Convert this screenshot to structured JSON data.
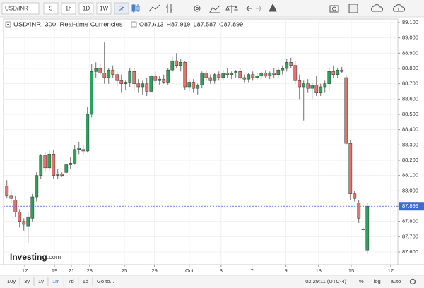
{
  "toolbar": {
    "symbol": "USD/INR",
    "intervals": [
      "5",
      "1h",
      "1D",
      "1W",
      "5h"
    ],
    "active_interval": 4
  },
  "chart_data": {
    "type": "candlestick",
    "title": "USD/INR, 300, Real-time Currencies",
    "ohlc_readout": [
      "O87.613",
      "H87.919",
      "L87.587",
      "C87.899"
    ],
    "logo": {
      "name": "Investing",
      "suffix": ".com"
    },
    "up_color": "#2ea05a",
    "down_color": "#e4736b",
    "last_price": {
      "value": 87.899,
      "label": "87.899"
    },
    "last_price_color": "#3d6bd8",
    "grid": true,
    "xlim": [
      -0.8,
      92.2
    ],
    "xticks": [
      {
        "value": 4.2,
        "label": "17"
      },
      {
        "value": 11.2,
        "label": "19"
      },
      {
        "value": 15.2,
        "label": "21"
      },
      {
        "value": 19.5,
        "label": "23"
      },
      {
        "value": 27.7,
        "label": "25"
      },
      {
        "value": 34.8,
        "label": "29"
      },
      {
        "value": 43,
        "label": "Oct"
      },
      {
        "value": 50.5,
        "label": "3"
      },
      {
        "value": 57.8,
        "label": "7"
      },
      {
        "value": 65.8,
        "label": "9"
      },
      {
        "value": 73.5,
        "label": "13"
      },
      {
        "value": 81.2,
        "label": "15"
      },
      {
        "value": 90.5,
        "label": "17"
      }
    ],
    "ylim": [
      87.517,
      89.123
    ],
    "yticks": [
      {
        "value": 87.6,
        "label": "87.600"
      },
      {
        "value": 87.7,
        "label": "87.700"
      },
      {
        "value": 87.8,
        "label": "87.800"
      },
      {
        "value": 87.9,
        "label": "87.900"
      },
      {
        "value": 88.0,
        "label": "88.000"
      },
      {
        "value": 88.1,
        "label": "88.100"
      },
      {
        "value": 88.2,
        "label": "88.200"
      },
      {
        "value": 88.3,
        "label": "88.300"
      },
      {
        "value": 88.4,
        "label": "88.400"
      },
      {
        "value": 88.5,
        "label": "88.500"
      },
      {
        "value": 88.6,
        "label": "88.600"
      },
      {
        "value": 88.7,
        "label": "88.700"
      },
      {
        "value": 88.8,
        "label": "88.800"
      },
      {
        "value": 88.9,
        "label": "88.900"
      },
      {
        "value": 89.0,
        "label": "89.000"
      },
      {
        "value": 89.1,
        "label": "89.100"
      }
    ],
    "series": [
      {
        "name": "USD/INR",
        "open": [
          88.03,
          87.97,
          87.94,
          87.86,
          87.8,
          87.77,
          87.82,
          87.96,
          88.1,
          88.23,
          88.15,
          88.24,
          88.1,
          88.11,
          88.12,
          88.17,
          88.18,
          88.27,
          88.27,
          88.26,
          88.5,
          88.78,
          88.8,
          88.77,
          88.74,
          88.79,
          88.76,
          88.72,
          88.7,
          88.71,
          88.78,
          88.7,
          88.68,
          88.7,
          88.65,
          88.75,
          88.72,
          88.73,
          88.71,
          88.79,
          88.85,
          88.82,
          88.84,
          88.68,
          88.71,
          88.67,
          88.69,
          88.77,
          88.74,
          88.72,
          88.76,
          88.74,
          88.77,
          88.76,
          88.77,
          88.78,
          88.74,
          88.73,
          88.76,
          88.74,
          88.75,
          88.77,
          88.75,
          88.77,
          88.76,
          88.79,
          88.8,
          88.84,
          88.82,
          88.72,
          88.68,
          88.7,
          88.67,
          88.69,
          88.64,
          88.68,
          88.7,
          88.78,
          88.76,
          88.79,
          88.74,
          88.31,
          87.98,
          87.92,
          87.75,
          87.613
        ],
        "high": [
          88.07,
          88.0,
          87.97,
          87.88,
          87.82,
          87.86,
          87.98,
          88.12,
          88.24,
          88.25,
          88.27,
          88.27,
          88.14,
          88.12,
          88.18,
          88.22,
          88.3,
          88.32,
          88.3,
          88.55,
          88.83,
          88.84,
          88.83,
          88.97,
          88.8,
          88.82,
          88.78,
          88.76,
          88.72,
          88.8,
          88.8,
          88.73,
          88.72,
          88.74,
          88.76,
          88.78,
          88.75,
          88.76,
          88.8,
          88.88,
          88.9,
          88.86,
          88.85,
          88.73,
          88.73,
          88.7,
          88.78,
          88.79,
          88.76,
          88.77,
          88.78,
          88.79,
          88.8,
          88.78,
          88.79,
          88.8,
          88.76,
          88.77,
          88.78,
          88.77,
          88.78,
          88.79,
          88.78,
          88.8,
          88.81,
          88.82,
          88.86,
          88.87,
          88.85,
          88.76,
          88.72,
          88.73,
          88.71,
          88.75,
          88.7,
          88.72,
          88.8,
          88.82,
          88.8,
          88.81,
          88.76,
          88.33,
          88.0,
          87.94,
          87.76,
          87.919
        ],
        "low": [
          87.95,
          87.92,
          87.83,
          87.76,
          87.74,
          87.66,
          87.8,
          87.93,
          88.08,
          88.12,
          88.13,
          88.08,
          88.08,
          88.09,
          88.11,
          88.14,
          88.17,
          88.24,
          88.24,
          88.25,
          88.48,
          88.74,
          88.76,
          88.7,
          88.7,
          88.74,
          88.68,
          88.64,
          88.66,
          88.68,
          88.66,
          88.64,
          88.63,
          88.62,
          88.64,
          88.7,
          88.69,
          88.7,
          88.69,
          88.77,
          88.8,
          88.78,
          88.66,
          88.65,
          88.64,
          88.63,
          88.67,
          88.72,
          88.7,
          88.7,
          88.72,
          88.72,
          88.74,
          88.73,
          88.74,
          88.73,
          88.71,
          88.71,
          88.72,
          88.72,
          88.73,
          88.74,
          88.73,
          88.74,
          88.74,
          88.76,
          88.78,
          88.8,
          88.7,
          88.6,
          88.46,
          88.64,
          88.6,
          88.62,
          88.62,
          88.64,
          88.66,
          88.74,
          88.74,
          88.77,
          88.3,
          87.94,
          87.93,
          87.79,
          87.74,
          87.587
        ],
        "close": [
          87.97,
          87.95,
          87.86,
          87.8,
          87.78,
          87.83,
          87.96,
          88.1,
          88.23,
          88.15,
          88.24,
          88.1,
          88.11,
          88.1,
          88.17,
          88.18,
          88.27,
          88.28,
          88.26,
          88.5,
          88.78,
          88.8,
          88.77,
          88.74,
          88.79,
          88.76,
          88.72,
          88.7,
          88.71,
          88.78,
          88.7,
          88.68,
          88.7,
          88.65,
          88.75,
          88.72,
          88.73,
          88.71,
          88.79,
          88.85,
          88.82,
          88.84,
          88.68,
          88.71,
          88.67,
          88.69,
          88.77,
          88.74,
          88.72,
          88.76,
          88.74,
          88.77,
          88.76,
          88.77,
          88.78,
          88.74,
          88.73,
          88.76,
          88.74,
          88.75,
          88.77,
          88.75,
          88.77,
          88.76,
          88.79,
          88.8,
          88.84,
          88.82,
          88.72,
          88.68,
          88.7,
          88.67,
          88.69,
          88.64,
          88.68,
          88.7,
          88.78,
          88.76,
          88.79,
          88.78,
          88.31,
          87.98,
          87.95,
          87.82,
          87.75,
          87.899
        ]
      }
    ]
  },
  "footer": {
    "ranges": [
      "10y",
      "3y",
      "1y",
      "1m",
      "7d",
      "1d"
    ],
    "active_range": 3,
    "goto": "Go to...",
    "clock": "02:29:11 (UTC-4)",
    "options": [
      "%",
      "log",
      "auto"
    ]
  }
}
